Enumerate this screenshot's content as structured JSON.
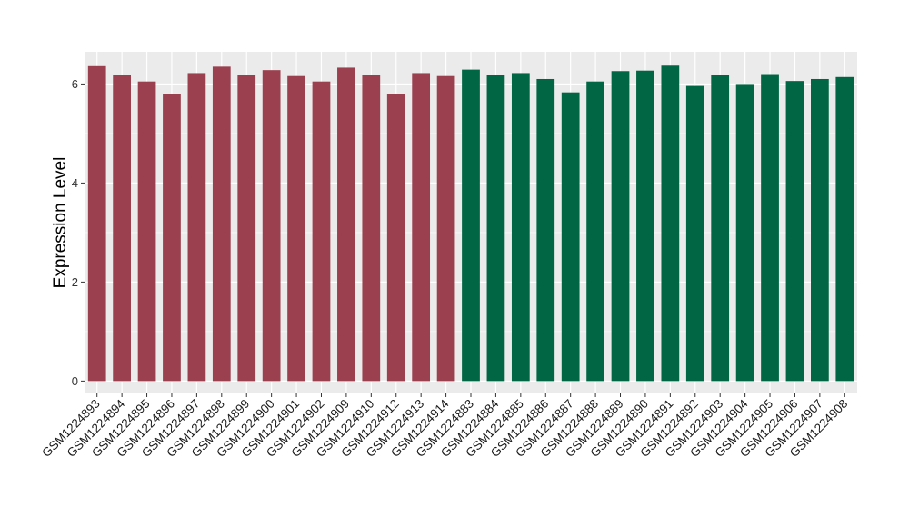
{
  "chart_data": {
    "type": "bar",
    "ylabel": "Expression Level",
    "xlabel": "",
    "ylim": [
      -0.25,
      6.65
    ],
    "yticks": [
      0,
      2,
      4,
      6
    ],
    "grid": true,
    "categories": [
      "GSM1224893",
      "GSM1224894",
      "GSM1224895",
      "GSM1224896",
      "GSM1224897",
      "GSM1224898",
      "GSM1224899",
      "GSM1224900",
      "GSM1224901",
      "GSM1224902",
      "GSM1224909",
      "GSM1224910",
      "GSM1224912",
      "GSM1224913",
      "GSM1224914",
      "GSM1224883",
      "GSM1224884",
      "GSM1224885",
      "GSM1224886",
      "GSM1224887",
      "GSM1224888",
      "GSM1224889",
      "GSM1224890",
      "GSM1224891",
      "GSM1224892",
      "GSM1224903",
      "GSM1224904",
      "GSM1224905",
      "GSM1224906",
      "GSM1224907",
      "GSM1224908"
    ],
    "values": [
      6.36,
      6.18,
      6.05,
      5.79,
      6.22,
      6.35,
      6.18,
      6.28,
      6.16,
      6.05,
      6.33,
      6.18,
      5.79,
      6.22,
      6.16,
      6.29,
      6.18,
      6.22,
      6.1,
      5.83,
      6.05,
      6.26,
      6.27,
      6.37,
      5.96,
      6.18,
      6.0,
      6.2,
      6.06,
      6.1,
      6.14
    ],
    "groups": [
      0,
      0,
      0,
      0,
      0,
      0,
      0,
      0,
      0,
      0,
      0,
      0,
      0,
      0,
      0,
      1,
      1,
      1,
      1,
      1,
      1,
      1,
      1,
      1,
      1,
      1,
      1,
      1,
      1,
      1,
      1
    ],
    "colors": [
      "#9b404e",
      "#006644"
    ],
    "panel_background": "#ebebeb",
    "grid_color": "#ffffff"
  }
}
